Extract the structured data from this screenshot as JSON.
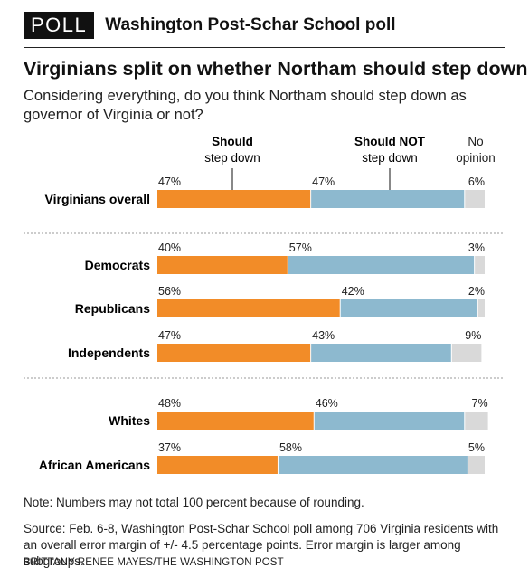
{
  "header": {
    "badge": "POLL",
    "source_name": "Washington Post-Schar School poll"
  },
  "title": "Virginians split on whether Northam should step down",
  "question": "Considering everything, do you think Northam should step down as governor of Virginia or not?",
  "legend": {
    "should_bold": "Should",
    "should_rest": "step down",
    "shouldnot_bold": "Should NOT",
    "shouldnot_rest": "step down",
    "noop_line1": "No",
    "noop_line2": "opinion"
  },
  "colors": {
    "should": "#F28C28",
    "should_not": "#8DB9CF",
    "no_opinion": "#D9D9D9",
    "divider": "#9a9a9a"
  },
  "chart_data": {
    "type": "bar",
    "stacked": true,
    "orientation": "horizontal",
    "xlim": [
      0,
      100
    ],
    "categories": [
      "Virginians overall",
      "Democrats",
      "Republicans",
      "Independents",
      "Whites",
      "African Americans"
    ],
    "groups": [
      [
        0
      ],
      [
        1,
        2,
        3
      ],
      [
        4,
        5
      ]
    ],
    "series": [
      {
        "name": "Should step down",
        "values": [
          47,
          40,
          56,
          47,
          48,
          37
        ]
      },
      {
        "name": "Should NOT step down",
        "values": [
          47,
          57,
          42,
          43,
          46,
          58
        ]
      },
      {
        "name": "No opinion",
        "values": [
          6,
          3,
          2,
          9,
          7,
          5
        ]
      }
    ],
    "value_suffix": "%"
  },
  "note": "Note: Numbers may not total 100 percent because of rounding.",
  "source": "Source: Feb. 6-8, Washington Post-Schar School poll among 706 Virginia residents with an overall error margin of +/- 4.5 percentage points. Error margin is larger among subgroups.",
  "credit": "BRITTANY RENEE MAYES/THE WASHINGTON POST"
}
